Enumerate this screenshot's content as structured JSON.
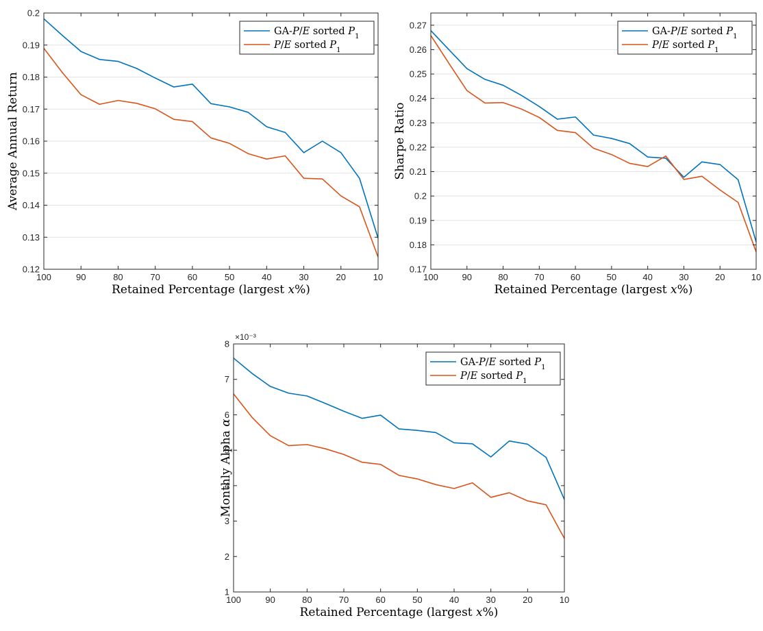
{
  "charts": [
    {
      "type": "line",
      "ylabel": "Average Annual Return",
      "xlabel": "Retained Percentage (largest x%)",
      "x": [
        100,
        95,
        90,
        85,
        80,
        75,
        70,
        65,
        60,
        55,
        50,
        45,
        40,
        35,
        30,
        25,
        20,
        15,
        10
      ],
      "xlim": [
        100,
        10
      ],
      "xticks": [
        100,
        90,
        80,
        70,
        60,
        50,
        40,
        30,
        20,
        10
      ],
      "xtick_labels": [
        "100",
        "90",
        "80",
        "70",
        "60",
        "50",
        "40",
        "30",
        "20",
        "10"
      ],
      "ylim": [
        0.12,
        0.2
      ],
      "yticks": [
        0.12,
        0.13,
        0.14,
        0.15,
        0.16,
        0.17,
        0.18,
        0.19,
        0.2
      ],
      "ytick_labels": [
        "0.12",
        "0.13",
        "0.14",
        "0.15",
        "0.16",
        "0.17",
        "0.18",
        "0.19",
        "0.2"
      ],
      "y_exponent": "",
      "grid": "horizontal",
      "legend_position": "top-right",
      "series": [
        {
          "name": "GA-P/E sorted P1",
          "color": "#0072BD",
          "values": [
            0.1982,
            0.193,
            0.188,
            0.1855,
            0.1849,
            0.1827,
            0.1797,
            0.1769,
            0.1778,
            0.1717,
            0.1707,
            0.169,
            0.1645,
            0.1627,
            0.1564,
            0.16,
            0.1564,
            0.1484,
            0.1297
          ]
        },
        {
          "name": "P/E sorted P1",
          "color": "#D95319",
          "values": [
            0.189,
            0.1814,
            0.1745,
            0.1715,
            0.1727,
            0.1718,
            0.1701,
            0.1668,
            0.1661,
            0.161,
            0.1593,
            0.1561,
            0.1544,
            0.1554,
            0.1484,
            0.1482,
            0.1429,
            0.1395,
            0.1238
          ]
        }
      ]
    },
    {
      "type": "line",
      "ylabel": "Sharpe Ratio",
      "xlabel": "Retained Percentage (largest x%)",
      "x": [
        100,
        95,
        90,
        85,
        80,
        75,
        70,
        65,
        60,
        55,
        50,
        45,
        40,
        35,
        30,
        25,
        20,
        15,
        10
      ],
      "xlim": [
        100,
        10
      ],
      "xticks": [
        100,
        90,
        80,
        70,
        60,
        50,
        40,
        30,
        20,
        10
      ],
      "xtick_labels": [
        "100",
        "90",
        "80",
        "70",
        "60",
        "50",
        "40",
        "30",
        "20",
        "10"
      ],
      "ylim": [
        0.17,
        0.275
      ],
      "yticks": [
        0.17,
        0.18,
        0.19,
        0.2,
        0.21,
        0.22,
        0.23,
        0.24,
        0.25,
        0.26,
        0.27
      ],
      "ytick_labels": [
        "0.17",
        "0.18",
        "0.19",
        "0.2",
        "0.21",
        "0.22",
        "0.23",
        "0.24",
        "0.25",
        "0.26",
        "0.27"
      ],
      "y_exponent": "",
      "grid": "horizontal",
      "legend_position": "top-right",
      "series": [
        {
          "name": "GA-P/E sorted P1",
          "color": "#0072BD",
          "values": [
            0.2678,
            0.26,
            0.2522,
            0.2478,
            0.2454,
            0.2413,
            0.2367,
            0.2315,
            0.2324,
            0.225,
            0.2236,
            0.2215,
            0.216,
            0.2155,
            0.2077,
            0.214,
            0.2129,
            0.2067,
            0.1812
          ]
        },
        {
          "name": "P/E sorted P1",
          "color": "#D95319",
          "values": [
            0.2658,
            0.2544,
            0.2432,
            0.2381,
            0.2383,
            0.2357,
            0.2322,
            0.2269,
            0.226,
            0.2196,
            0.217,
            0.2134,
            0.2121,
            0.2164,
            0.2068,
            0.2081,
            0.2025,
            0.1974,
            0.1771
          ]
        }
      ]
    },
    {
      "type": "line",
      "ylabel": "Monthly Alpha α",
      "xlabel": "Retained Percentage (largest x%)",
      "x": [
        100,
        95,
        90,
        85,
        80,
        75,
        70,
        65,
        60,
        55,
        50,
        45,
        40,
        35,
        30,
        25,
        20,
        15,
        10
      ],
      "xlim": [
        100,
        10
      ],
      "xticks": [
        100,
        90,
        80,
        70,
        60,
        50,
        40,
        30,
        20,
        10
      ],
      "xtick_labels": [
        "100",
        "90",
        "80",
        "70",
        "60",
        "50",
        "40",
        "30",
        "20",
        "10"
      ],
      "ylim": [
        0.001,
        0.008
      ],
      "yticks": [
        0.001,
        0.002,
        0.003,
        0.004,
        0.005,
        0.006,
        0.007,
        0.008
      ],
      "ytick_labels": [
        "1",
        "2",
        "3",
        "4",
        "5",
        "6",
        "7",
        "8"
      ],
      "y_exponent": "×10⁻³",
      "grid": "none",
      "legend_position": "top-right",
      "series": [
        {
          "name": "GA-P/E sorted P1",
          "color": "#0072BD",
          "values": [
            0.0076,
            0.00717,
            0.0068,
            0.00661,
            0.00653,
            0.00632,
            0.0061,
            0.0059,
            0.00599,
            0.0056,
            0.00556,
            0.0055,
            0.00521,
            0.00518,
            0.00481,
            0.00526,
            0.00517,
            0.0048,
            0.00361
          ]
        },
        {
          "name": "P/E sorted P1",
          "color": "#D95319",
          "values": [
            0.00659,
            0.00593,
            0.00541,
            0.00513,
            0.00516,
            0.00504,
            0.00488,
            0.00466,
            0.0046,
            0.00429,
            0.00419,
            0.00403,
            0.00392,
            0.00408,
            0.00367,
            0.0038,
            0.00357,
            0.00346,
            0.00251
          ]
        }
      ]
    }
  ]
}
